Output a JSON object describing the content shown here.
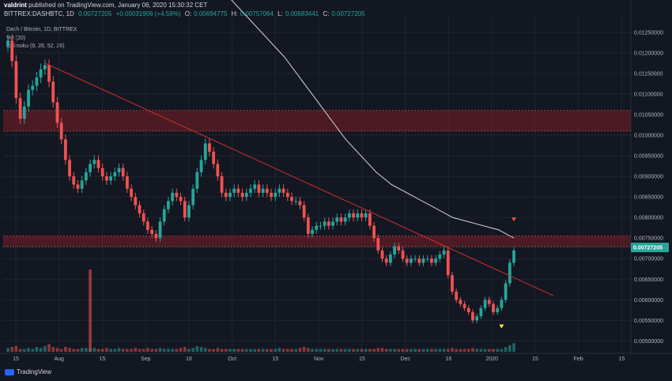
{
  "header": {
    "author": "valdrint",
    "published_text": "published on TradingView.com, January 06, 2020 15:30:32 CET",
    "symbol_line": "BITTREX:DASHBTC, 1D",
    "price": "0.00727205",
    "change": "+0.00031906 (+4.59%)",
    "o_label": "O:",
    "o_value": "0.00694775",
    "h_label": "H:",
    "h_value": "0.00757064",
    "l_label": "L:",
    "l_value": "0.00683441",
    "c_label": "C:",
    "c_value": "0.00727205"
  },
  "legend": {
    "title": "Dash / Bitcoin, 1D, BITTREX",
    "vol": "Vol (20)",
    "ichimoku": "Ichimoku (9, 26, 52, 26)"
  },
  "brand": "TradingView",
  "price_tag": "0.00727205",
  "colors": {
    "background": "#131722",
    "up": "#26a69a",
    "down": "#ef5350",
    "trendline": "#d32f2f",
    "ma_line": "#c9c9c9",
    "zone_fill": "#7a1e24",
    "price_tag_bg": "#26a69a",
    "signal_down": "#ef5350",
    "signal_up": "#ffeb3b"
  },
  "chart_data": {
    "type": "candlestick",
    "title": "Dash / Bitcoin, 1D, BITTREX",
    "ylim": [
      0.0047,
      0.0129
    ],
    "y_ticks": [
      "0.01250000",
      "0.01200000",
      "0.01150000",
      "0.01100000",
      "0.01050000",
      "0.01000000",
      "0.00950000",
      "0.00900000",
      "0.00850000",
      "0.00800000",
      "0.00750000",
      "0.00700000",
      "0.00650000",
      "0.00600000",
      "0.00550000",
      "0.00500000"
    ],
    "x_ticks": [
      "15",
      "Aug",
      "15",
      "Sep",
      "16",
      "Oct",
      "15",
      "Nov",
      "15",
      "Dec",
      "16",
      "2020",
      "15",
      "Feb",
      "15"
    ],
    "close_series": [
      0.0123,
      0.0118,
      0.0109,
      0.0104,
      0.0107,
      0.0111,
      0.0112,
      0.0114,
      0.0116,
      0.0117,
      0.0113,
      0.0108,
      0.0103,
      0.0099,
      0.0094,
      0.009,
      0.0088,
      0.0087,
      0.0089,
      0.0091,
      0.0093,
      0.0094,
      0.0092,
      0.009,
      0.0089,
      0.009,
      0.0091,
      0.0092,
      0.009,
      0.0087,
      0.0085,
      0.0083,
      0.0081,
      0.0079,
      0.0077,
      0.0076,
      0.0075,
      0.0079,
      0.0082,
      0.0084,
      0.0086,
      0.0085,
      0.0084,
      0.008,
      0.0083,
      0.0087,
      0.0091,
      0.0094,
      0.0098,
      0.0096,
      0.0093,
      0.009,
      0.0086,
      0.0085,
      0.0086,
      0.0087,
      0.0086,
      0.0085,
      0.0086,
      0.0087,
      0.0088,
      0.0086,
      0.0087,
      0.0086,
      0.0085,
      0.0086,
      0.0087,
      0.0086,
      0.0085,
      0.0084,
      0.0084,
      0.0083,
      0.008,
      0.0076,
      0.0077,
      0.0078,
      0.0078,
      0.0079,
      0.0078,
      0.0079,
      0.008,
      0.0079,
      0.008,
      0.0081,
      0.008,
      0.0081,
      0.008,
      0.0081,
      0.0078,
      0.0075,
      0.0072,
      0.007,
      0.0069,
      0.0071,
      0.0073,
      0.0072,
      0.007,
      0.0069,
      0.007,
      0.007,
      0.0069,
      0.007,
      0.007,
      0.0069,
      0.007,
      0.0071,
      0.0072,
      0.0066,
      0.0062,
      0.006,
      0.0059,
      0.0058,
      0.0057,
      0.0055,
      0.0056,
      0.0058,
      0.006,
      0.0059,
      0.0057,
      0.0058,
      0.006,
      0.0064,
      0.0069,
      0.0072
    ],
    "volume_series": [
      0.4,
      0.5,
      0.6,
      0.3,
      0.3,
      0.4,
      0.3,
      0.5,
      0.4,
      0.6,
      0.8,
      0.5,
      0.4,
      0.3,
      0.5,
      0.4,
      0.3,
      0.3,
      0.4,
      0.4,
      0.3,
      0.4,
      0.3,
      0.3,
      0.4,
      0.3,
      0.3,
      0.4,
      0.3,
      0.3,
      0.3,
      0.4,
      0.3,
      0.3,
      0.4,
      0.3,
      0.3,
      0.4,
      0.3,
      0.3,
      0.3,
      0.3,
      0.4,
      0.5,
      0.3,
      0.4,
      0.6,
      0.5,
      0.4,
      0.3,
      0.3,
      0.4,
      0.3,
      0.3,
      0.3,
      0.3,
      0.3,
      0.3,
      0.3,
      0.3,
      0.3,
      0.3,
      0.3,
      0.3,
      0.3,
      0.3,
      0.4,
      0.3,
      0.3,
      0.3,
      0.3,
      0.4,
      0.5,
      0.4,
      0.3,
      0.3,
      0.3,
      0.3,
      0.3,
      0.3,
      0.3,
      0.3,
      0.3,
      0.3,
      0.3,
      0.3,
      0.3,
      0.3,
      0.3,
      0.3,
      0.4,
      0.4,
      0.3,
      0.3,
      0.3,
      0.3,
      0.3,
      0.3,
      0.3,
      0.3,
      0.3,
      0.3,
      0.3,
      0.3,
      0.3,
      0.3,
      0.3,
      0.3,
      0.4,
      0.3,
      0.3,
      0.3,
      0.3,
      0.4,
      0.3,
      0.3,
      0.3,
      0.3,
      0.3,
      0.3,
      0.3,
      0.5,
      0.7,
      0.9
    ],
    "volume_spike": {
      "index": 20,
      "value": 2.6
    },
    "moving_average": [
      [
        0.0155,
        0.015,
        0.0145,
        0.014,
        0.0135,
        0.0131,
        0.0127,
        0.0123,
        0.0119,
        0.0114,
        0.0109,
        0.0104,
        0.0099,
        0.0095,
        0.0091,
        0.0088,
        0.0086,
        0.0084,
        0.0082,
        0.008,
        0.0079,
        0.0078,
        0.0077,
        0.0075
      ]
    ],
    "trendline": {
      "start": 0.01175,
      "end": 0.0061
    },
    "resistance_zone_upper": [
      0.0101,
      0.0106
    ],
    "resistance_zone_lower": [
      0.0073,
      0.00755
    ]
  }
}
